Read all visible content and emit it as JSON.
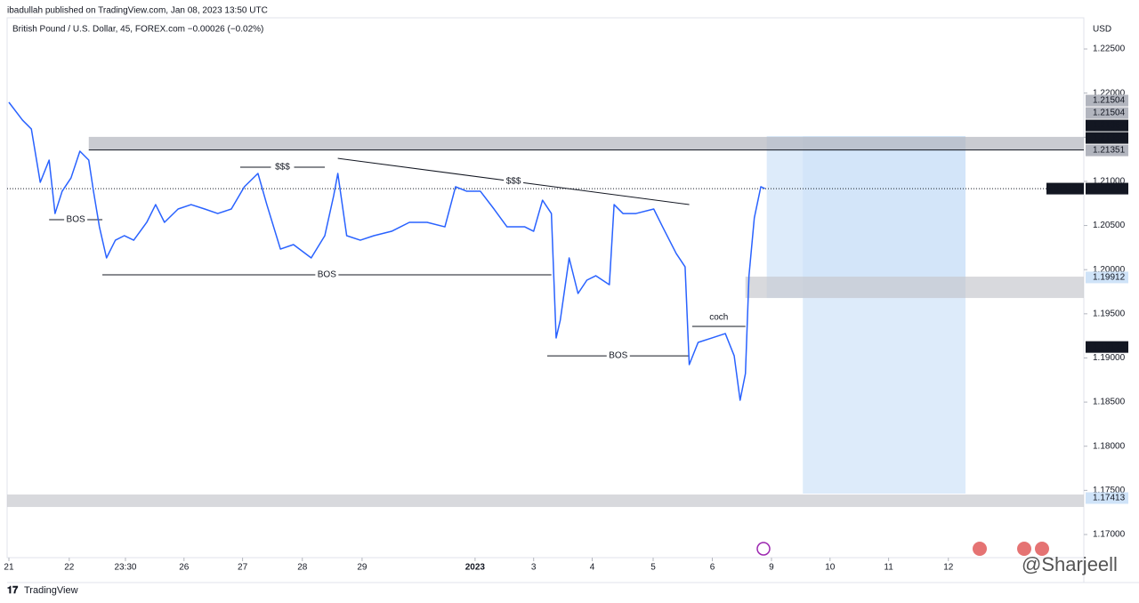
{
  "header": {
    "published": "ibadullah published on TradingView.com, Jan 08, 2023 13:50 UTC",
    "symbol": "British Pound / U.S. Dollar, 45, FOREX.com  −0.00026 (−0.02%)",
    "currency": "USD",
    "footer": "TradingView",
    "watermark": "@Sharjeell"
  },
  "chart_data": {
    "type": "line",
    "x": [
      0,
      0.23,
      0.38,
      0.53,
      0.68,
      0.78,
      0.9,
      1.05,
      1.2,
      1.35,
      1.43,
      1.53,
      1.65,
      1.8,
      1.95,
      2.11,
      2.33,
      2.48,
      2.63,
      2.86,
      3.08,
      3.31,
      3.53,
      3.76,
      3.98,
      4.21,
      4.36,
      4.59,
      4.81,
      5.11,
      5.34,
      5.49,
      5.56,
      5.71,
      5.94,
      6.17,
      6.47,
      6.77,
      7.07,
      7.37,
      7.55,
      7.74,
      7.97,
      8.2,
      8.42,
      8.72,
      8.87,
      9.02,
      9.17,
      9.25,
      9.32,
      9.47,
      9.62,
      9.77,
      9.92,
      10.15,
      10.23,
      10.38,
      10.6,
      10.9,
      11.05,
      11.28,
      11.43,
      11.5,
      11.65,
      11.88,
      12.11,
      12.26,
      12.36,
      12.45,
      12.51,
      12.6,
      12.71,
      12.78
    ],
    "series": [
      {
        "name": "GBPUSD",
        "color": "#2962ff",
        "values": [
          1.21896,
          1.21694,
          1.21593,
          1.20989,
          1.21241,
          1.20636,
          1.20888,
          1.21039,
          1.21342,
          1.21241,
          1.20888,
          1.20485,
          1.20133,
          1.20334,
          1.20385,
          1.20334,
          1.20536,
          1.20737,
          1.20536,
          1.20687,
          1.20737,
          1.20687,
          1.20636,
          1.20687,
          1.20939,
          1.2109,
          1.20737,
          1.20233,
          1.20284,
          1.20133,
          1.20385,
          1.20838,
          1.2109,
          1.20385,
          1.20334,
          1.20385,
          1.20435,
          1.20536,
          1.20536,
          1.20485,
          1.20939,
          1.20888,
          1.20888,
          1.20687,
          1.20485,
          1.20485,
          1.20435,
          1.20787,
          1.20636,
          1.19226,
          1.19427,
          1.20133,
          1.1973,
          1.19881,
          1.19931,
          1.1983,
          1.20737,
          1.20636,
          1.20636,
          1.20687,
          1.20485,
          1.20183,
          1.20032,
          1.18924,
          1.19176,
          1.19226,
          1.19276,
          1.19024,
          1.18521,
          1.18823,
          1.19931,
          1.20586,
          1.20939,
          1.20918
        ]
      }
    ],
    "xlim": [
      -0.03,
      18.17
    ],
    "xticks": [
      {
        "value": 0,
        "label": "21"
      },
      {
        "value": 1.02,
        "label": "22"
      },
      {
        "value": 1.97,
        "label": "23:30"
      },
      {
        "value": 2.96,
        "label": "26"
      },
      {
        "value": 3.95,
        "label": "27"
      },
      {
        "value": 4.96,
        "label": "28"
      },
      {
        "value": 5.97,
        "label": "29"
      },
      {
        "value": 7.88,
        "label": "2023"
      },
      {
        "value": 8.87,
        "label": "3"
      },
      {
        "value": 9.86,
        "label": "4"
      },
      {
        "value": 10.89,
        "label": "5"
      },
      {
        "value": 11.89,
        "label": "6"
      },
      {
        "value": 12.89,
        "label": "9"
      },
      {
        "value": 13.88,
        "label": "10"
      },
      {
        "value": 14.87,
        "label": "11"
      },
      {
        "value": 15.88,
        "label": "12"
      }
    ],
    "ylim": [
      1.16738,
      1.22853
    ],
    "yticks": [
      {
        "value": 1.17,
        "label": "1.17000"
      },
      {
        "value": 1.175,
        "label": "1.17500"
      },
      {
        "value": 1.18,
        "label": "1.18000"
      },
      {
        "value": 1.185,
        "label": "1.18500"
      },
      {
        "value": 1.19,
        "label": "1.19000"
      },
      {
        "value": 1.195,
        "label": "1.19500"
      },
      {
        "value": 1.2,
        "label": "1.20000"
      },
      {
        "value": 1.205,
        "label": "1.20500"
      },
      {
        "value": 1.21,
        "label": "1.21000"
      },
      {
        "value": 1.215,
        "label": "1.21500"
      },
      {
        "value": 1.22,
        "label": "1.22000"
      },
      {
        "value": 1.225,
        "label": "1.22500"
      }
    ],
    "price_tags": [
      {
        "value": 1.21504,
        "color": "#b2b5be",
        "text_color": "#131722"
      },
      {
        "value": 1.21504,
        "color": "#b2b5be",
        "text_color": "#131722"
      },
      {
        "value": 1.21367,
        "color": "#131722",
        "text_color": "#ffffff"
      },
      {
        "value": 1.21356,
        "color": "#131722",
        "text_color": "#ffffff"
      },
      {
        "value": 1.21351,
        "color": "#b2b5be",
        "text_color": "#131722"
      },
      {
        "value": 1.20918,
        "name": "GBPUSD",
        "color": "#131722",
        "text_color": "#ffffff"
      },
      {
        "value": 1.19912,
        "color": "#cfe3f8",
        "text_color": "#131722"
      },
      {
        "value": 1.19124,
        "color": "#131722",
        "text_color": "#ffffff"
      },
      {
        "value": 1.17413,
        "color": "#cfe3f8",
        "text_color": "#131722"
      }
    ],
    "zones": [
      {
        "from": 1.21513,
        "to": 1.19679,
        "x_range": [
          12.81,
          16.17
        ],
        "color": "#cfe3f8"
      },
      {
        "from": 1.21513,
        "to": 1.17463,
        "x_range": [
          13.42,
          16.17
        ],
        "color": "#cfe3f8"
      },
      {
        "from": 1.21504,
        "to": 1.21351,
        "x_range": [
          1.35,
          18.17
        ],
        "color": "#b2b5be"
      },
      {
        "from": 1.19921,
        "to": 1.19679,
        "x_range": [
          12.45,
          18.17
        ],
        "color": "#c7c9cf"
      },
      {
        "from": 1.17453,
        "to": 1.17312,
        "x_range": [
          -0.03,
          18.17
        ],
        "color": "#c7c9cf"
      }
    ],
    "annotations": [
      {
        "text": "BOS",
        "level": 1.20566,
        "x_range": [
          0.68,
          1.58
        ]
      },
      {
        "text": "BOS",
        "level": 1.19941,
        "x_range": [
          1.58,
          9.17
        ]
      },
      {
        "text": "BOS",
        "level": 1.19024,
        "x_range": [
          9.1,
          11.5
        ]
      },
      {
        "text": "$$$",
        "level": 1.2116,
        "x_range": [
          3.91,
          5.34
        ]
      },
      {
        "text": "coch",
        "level": 1.19357,
        "x_range": [
          11.55,
          12.45
        ]
      }
    ],
    "trendline": {
      "text": "$$$",
      "x_range": [
        5.56,
        11.5
      ],
      "levels": [
        1.21261,
        1.20737
      ]
    },
    "level_line": {
      "level": 1.21356,
      "x_range": [
        1.35,
        18.17
      ]
    },
    "last_price_line": 1.20918
  }
}
